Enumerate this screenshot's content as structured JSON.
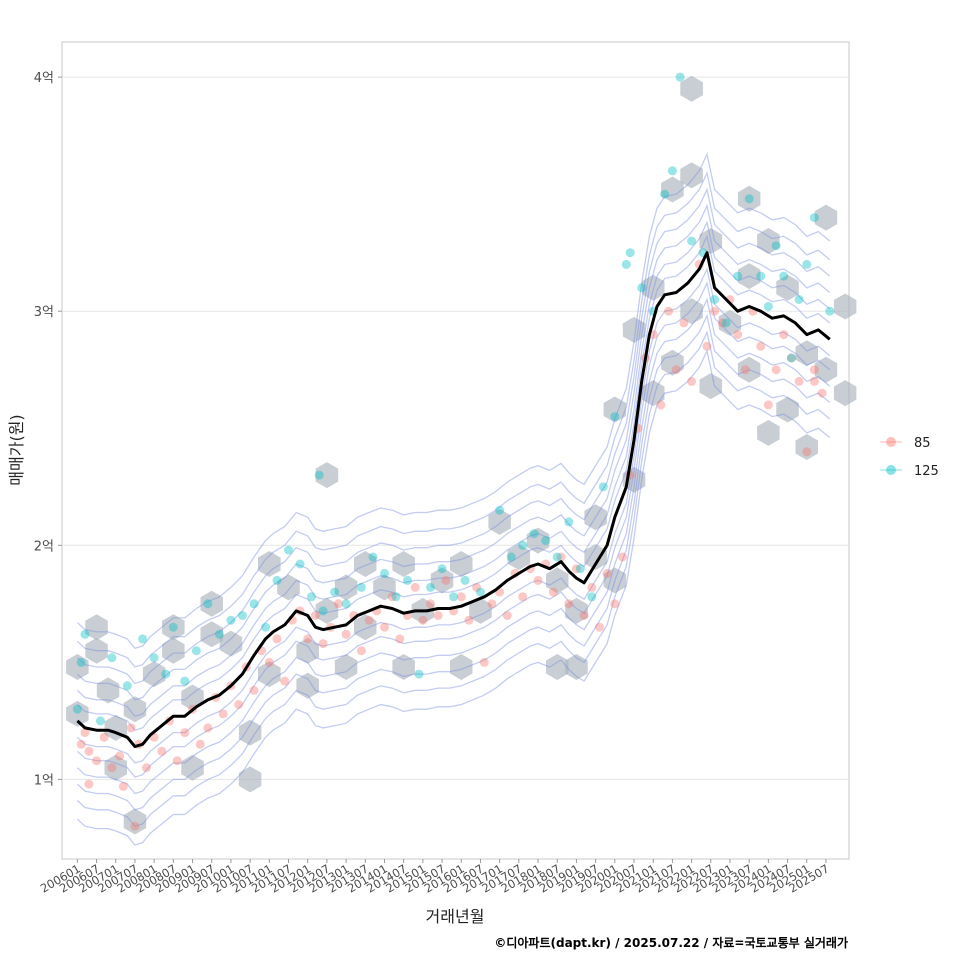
{
  "chart_data": {
    "type": "scatter",
    "title": "",
    "xlabel": "거래년월",
    "ylabel": "매매가(원)",
    "caption": "©디아파트(dapt.kr) / 2025.07.22 / 자료=국토교통부 실거래가",
    "ylim": [
      0.66,
      4.15
    ],
    "y_ticks": [
      {
        "value": 1,
        "label": "1억"
      },
      {
        "value": 2,
        "label": "2억"
      },
      {
        "value": 3,
        "label": "3억"
      },
      {
        "value": 4,
        "label": "4억"
      }
    ],
    "x_ticks": [
      "200601",
      "200607",
      "200701",
      "200707",
      "200801",
      "200807",
      "200901",
      "200907",
      "201001",
      "201007",
      "201101",
      "201107",
      "201201",
      "201207",
      "201301",
      "201307",
      "201401",
      "201407",
      "201501",
      "201507",
      "201601",
      "201607",
      "201701",
      "201707",
      "201801",
      "201807",
      "201901",
      "201907",
      "202001",
      "202007",
      "202101",
      "202107",
      "202201",
      "202207",
      "202301",
      "202307",
      "202401",
      "202407",
      "202501",
      "202507"
    ],
    "x_unit": "year",
    "xlim": [
      2005.6,
      2026.1
    ],
    "grid": true,
    "legend_position": "right",
    "colors": {
      "series_85": "#F8766D",
      "series_125": "#00BFC4",
      "trend": "#000000",
      "hex": "#aab4bd",
      "contour": "#7a8fe0"
    },
    "series": [
      {
        "name": "85",
        "color": "#F8766D",
        "points": [
          [
            2006.1,
            1.15
          ],
          [
            2006.2,
            1.2
          ],
          [
            2006.3,
            1.12
          ],
          [
            2006.5,
            1.08
          ],
          [
            2006.7,
            1.18
          ],
          [
            2006.9,
            1.05
          ],
          [
            2007.1,
            1.1
          ],
          [
            2007.2,
            0.97
          ],
          [
            2007.4,
            1.22
          ],
          [
            2007.6,
            1.15
          ],
          [
            2007.8,
            1.05
          ],
          [
            2008.0,
            1.18
          ],
          [
            2008.2,
            1.12
          ],
          [
            2008.4,
            1.25
          ],
          [
            2008.6,
            1.08
          ],
          [
            2008.8,
            1.2
          ],
          [
            2009.0,
            1.3
          ],
          [
            2009.2,
            1.15
          ],
          [
            2009.4,
            1.22
          ],
          [
            2009.6,
            1.35
          ],
          [
            2009.8,
            1.28
          ],
          [
            2010.0,
            1.4
          ],
          [
            2010.2,
            1.32
          ],
          [
            2010.4,
            1.48
          ],
          [
            2010.6,
            1.38
          ],
          [
            2010.8,
            1.55
          ],
          [
            2011.0,
            1.5
          ],
          [
            2011.2,
            1.6
          ],
          [
            2011.4,
            1.42
          ],
          [
            2011.6,
            1.68
          ],
          [
            2011.8,
            1.72
          ],
          [
            2012.0,
            1.6
          ],
          [
            2012.2,
            1.7
          ],
          [
            2012.4,
            1.58
          ],
          [
            2012.6,
            1.65
          ],
          [
            2012.8,
            1.75
          ],
          [
            2013.0,
            1.62
          ],
          [
            2013.2,
            1.7
          ],
          [
            2013.4,
            1.55
          ],
          [
            2013.6,
            1.68
          ],
          [
            2013.8,
            1.72
          ],
          [
            2014.0,
            1.65
          ],
          [
            2014.2,
            1.78
          ],
          [
            2014.4,
            1.6
          ],
          [
            2014.6,
            1.7
          ],
          [
            2014.8,
            1.82
          ],
          [
            2015.0,
            1.68
          ],
          [
            2015.2,
            1.75
          ],
          [
            2015.4,
            1.7
          ],
          [
            2015.6,
            1.85
          ],
          [
            2015.8,
            1.72
          ],
          [
            2016.0,
            1.78
          ],
          [
            2016.2,
            1.68
          ],
          [
            2016.4,
            1.82
          ],
          [
            2016.6,
            1.5
          ],
          [
            2016.8,
            1.75
          ],
          [
            2017.0,
            1.8
          ],
          [
            2017.2,
            1.7
          ],
          [
            2017.4,
            1.88
          ],
          [
            2017.6,
            1.78
          ],
          [
            2017.8,
            1.9
          ],
          [
            2018.0,
            1.85
          ],
          [
            2018.2,
            1.92
          ],
          [
            2018.4,
            1.8
          ],
          [
            2018.6,
            1.95
          ],
          [
            2018.8,
            1.75
          ],
          [
            2019.0,
            1.9
          ],
          [
            2019.2,
            1.7
          ],
          [
            2019.4,
            1.82
          ],
          [
            2019.6,
            1.65
          ],
          [
            2019.8,
            1.88
          ],
          [
            2020.0,
            1.75
          ],
          [
            2020.2,
            1.95
          ],
          [
            2020.4,
            2.3
          ],
          [
            2020.6,
            2.5
          ],
          [
            2020.8,
            2.8
          ],
          [
            2021.0,
            2.9
          ],
          [
            2021.2,
            2.6
          ],
          [
            2021.4,
            3.0
          ],
          [
            2021.6,
            2.75
          ],
          [
            2021.8,
            2.95
          ],
          [
            2022.0,
            2.7
          ],
          [
            2022.2,
            3.2
          ],
          [
            2022.4,
            2.85
          ],
          [
            2022.6,
            3.0
          ],
          [
            2022.8,
            2.95
          ],
          [
            2023.0,
            3.05
          ],
          [
            2023.2,
            2.9
          ],
          [
            2023.4,
            2.75
          ],
          [
            2023.6,
            3.0
          ],
          [
            2023.8,
            2.85
          ],
          [
            2024.0,
            2.6
          ],
          [
            2024.2,
            2.75
          ],
          [
            2024.4,
            2.9
          ],
          [
            2024.6,
            2.8
          ],
          [
            2024.8,
            2.7
          ],
          [
            2025.0,
            2.4
          ],
          [
            2025.2,
            2.75
          ],
          [
            2025.4,
            2.65
          ],
          [
            2025.2,
            2.7
          ],
          [
            2006.3,
            0.98
          ],
          [
            2007.5,
            0.8
          ]
        ]
      },
      {
        "name": "125",
        "color": "#00BFC4",
        "points": [
          [
            2006.0,
            1.3
          ],
          [
            2006.1,
            1.5
          ],
          [
            2006.2,
            1.62
          ],
          [
            2006.6,
            1.25
          ],
          [
            2006.9,
            1.52
          ],
          [
            2007.3,
            1.4
          ],
          [
            2007.7,
            1.6
          ],
          [
            2008.0,
            1.52
          ],
          [
            2008.3,
            1.45
          ],
          [
            2008.5,
            1.65
          ],
          [
            2008.8,
            1.42
          ],
          [
            2009.1,
            1.55
          ],
          [
            2009.4,
            1.75
          ],
          [
            2009.7,
            1.62
          ],
          [
            2010.0,
            1.68
          ],
          [
            2010.3,
            1.7
          ],
          [
            2010.6,
            1.75
          ],
          [
            2010.9,
            1.65
          ],
          [
            2011.2,
            1.85
          ],
          [
            2011.5,
            1.98
          ],
          [
            2011.8,
            1.92
          ],
          [
            2012.1,
            1.78
          ],
          [
            2012.4,
            1.72
          ],
          [
            2012.7,
            1.8
          ],
          [
            2013.0,
            1.75
          ],
          [
            2013.4,
            1.82
          ],
          [
            2013.7,
            1.95
          ],
          [
            2014.0,
            1.88
          ],
          [
            2014.3,
            1.78
          ],
          [
            2014.6,
            1.85
          ],
          [
            2014.9,
            1.45
          ],
          [
            2015.2,
            1.82
          ],
          [
            2015.5,
            1.9
          ],
          [
            2015.8,
            1.78
          ],
          [
            2016.1,
            1.85
          ],
          [
            2016.5,
            1.8
          ],
          [
            2017.0,
            2.15
          ],
          [
            2017.3,
            1.95
          ],
          [
            2017.6,
            2.0
          ],
          [
            2017.9,
            2.05
          ],
          [
            2018.2,
            2.02
          ],
          [
            2018.5,
            1.95
          ],
          [
            2018.8,
            2.1
          ],
          [
            2019.1,
            1.9
          ],
          [
            2019.4,
            1.78
          ],
          [
            2019.7,
            2.25
          ],
          [
            2020.0,
            2.55
          ],
          [
            2020.3,
            3.2
          ],
          [
            2020.4,
            3.25
          ],
          [
            2020.7,
            3.1
          ],
          [
            2021.0,
            3.0
          ],
          [
            2021.3,
            3.5
          ],
          [
            2021.5,
            3.6
          ],
          [
            2021.7,
            4.0
          ],
          [
            2022.0,
            3.3
          ],
          [
            2022.3,
            3.25
          ],
          [
            2022.6,
            3.05
          ],
          [
            2022.9,
            2.95
          ],
          [
            2023.2,
            3.15
          ],
          [
            2023.5,
            3.48
          ],
          [
            2023.8,
            3.15
          ],
          [
            2024.0,
            3.02
          ],
          [
            2024.2,
            3.28
          ],
          [
            2024.4,
            3.15
          ],
          [
            2024.6,
            2.8
          ],
          [
            2024.8,
            3.05
          ],
          [
            2025.0,
            3.2
          ],
          [
            2025.2,
            3.4
          ],
          [
            2025.6,
            3.0
          ],
          [
            2012.3,
            2.3
          ]
        ]
      }
    ],
    "trend_line": [
      [
        2006.0,
        1.25
      ],
      [
        2006.2,
        1.22
      ],
      [
        2006.5,
        1.21
      ],
      [
        2006.8,
        1.21
      ],
      [
        2007.0,
        1.2
      ],
      [
        2007.3,
        1.18
      ],
      [
        2007.5,
        1.14
      ],
      [
        2007.7,
        1.15
      ],
      [
        2007.9,
        1.19
      ],
      [
        2008.2,
        1.23
      ],
      [
        2008.5,
        1.27
      ],
      [
        2008.8,
        1.27
      ],
      [
        2009.1,
        1.31
      ],
      [
        2009.4,
        1.34
      ],
      [
        2009.7,
        1.36
      ],
      [
        2010.0,
        1.4
      ],
      [
        2010.3,
        1.45
      ],
      [
        2010.6,
        1.53
      ],
      [
        2010.9,
        1.6
      ],
      [
        2011.1,
        1.63
      ],
      [
        2011.4,
        1.66
      ],
      [
        2011.7,
        1.72
      ],
      [
        2012.0,
        1.7
      ],
      [
        2012.2,
        1.65
      ],
      [
        2012.4,
        1.64
      ],
      [
        2012.7,
        1.65
      ],
      [
        2013.0,
        1.66
      ],
      [
        2013.3,
        1.7
      ],
      [
        2013.6,
        1.72
      ],
      [
        2013.9,
        1.74
      ],
      [
        2014.2,
        1.73
      ],
      [
        2014.5,
        1.71
      ],
      [
        2014.8,
        1.72
      ],
      [
        2015.1,
        1.72
      ],
      [
        2015.4,
        1.73
      ],
      [
        2015.7,
        1.73
      ],
      [
        2016.0,
        1.74
      ],
      [
        2016.3,
        1.76
      ],
      [
        2016.6,
        1.78
      ],
      [
        2016.9,
        1.81
      ],
      [
        2017.2,
        1.85
      ],
      [
        2017.5,
        1.88
      ],
      [
        2017.8,
        1.91
      ],
      [
        2018.0,
        1.92
      ],
      [
        2018.3,
        1.9
      ],
      [
        2018.6,
        1.93
      ],
      [
        2018.8,
        1.89
      ],
      [
        2019.0,
        1.86
      ],
      [
        2019.2,
        1.84
      ],
      [
        2019.5,
        1.92
      ],
      [
        2019.8,
        2.0
      ],
      [
        2020.0,
        2.12
      ],
      [
        2020.3,
        2.25
      ],
      [
        2020.5,
        2.45
      ],
      [
        2020.7,
        2.7
      ],
      [
        2020.9,
        2.9
      ],
      [
        2021.1,
        3.02
      ],
      [
        2021.3,
        3.07
      ],
      [
        2021.6,
        3.08
      ],
      [
        2021.9,
        3.12
      ],
      [
        2022.2,
        3.18
      ],
      [
        2022.4,
        3.25
      ],
      [
        2022.6,
        3.1
      ],
      [
        2022.9,
        3.05
      ],
      [
        2023.2,
        3.0
      ],
      [
        2023.5,
        3.02
      ],
      [
        2023.8,
        3.0
      ],
      [
        2024.1,
        2.97
      ],
      [
        2024.4,
        2.98
      ],
      [
        2024.7,
        2.95
      ],
      [
        2025.0,
        2.9
      ],
      [
        2025.3,
        2.92
      ],
      [
        2025.6,
        2.88
      ]
    ],
    "hex_density_centers": [
      [
        2006.0,
        1.48
      ],
      [
        2006.0,
        1.28
      ],
      [
        2006.5,
        1.65
      ],
      [
        2006.5,
        1.55
      ],
      [
        2006.8,
        1.38
      ],
      [
        2007.0,
        1.22
      ],
      [
        2007.0,
        1.05
      ],
      [
        2007.5,
        0.82
      ],
      [
        2007.5,
        1.3
      ],
      [
        2008.0,
        1.45
      ],
      [
        2008.5,
        1.65
      ],
      [
        2008.5,
        1.55
      ],
      [
        2009.0,
        1.35
      ],
      [
        2009.0,
        1.05
      ],
      [
        2009.5,
        1.75
      ],
      [
        2009.5,
        1.62
      ],
      [
        2010.0,
        1.58
      ],
      [
        2010.5,
        1.2
      ],
      [
        2010.5,
        1.0
      ],
      [
        2011.0,
        1.92
      ],
      [
        2011.0,
        1.45
      ],
      [
        2011.5,
        1.82
      ],
      [
        2012.0,
        1.55
      ],
      [
        2012.0,
        1.4
      ],
      [
        2012.5,
        1.72
      ],
      [
        2013.0,
        1.82
      ],
      [
        2013.0,
        1.48
      ],
      [
        2013.5,
        1.92
      ],
      [
        2013.5,
        1.65
      ],
      [
        2014.0,
        1.82
      ],
      [
        2014.5,
        1.92
      ],
      [
        2014.5,
        1.48
      ],
      [
        2015.0,
        1.72
      ],
      [
        2015.5,
        1.85
      ],
      [
        2016.0,
        1.92
      ],
      [
        2016.0,
        1.48
      ],
      [
        2016.5,
        1.72
      ],
      [
        2017.0,
        2.1
      ],
      [
        2017.5,
        1.95
      ],
      [
        2018.0,
        2.02
      ],
      [
        2018.5,
        1.85
      ],
      [
        2019.0,
        1.72
      ],
      [
        2019.0,
        1.48
      ],
      [
        2019.5,
        2.12
      ],
      [
        2019.5,
        1.95
      ],
      [
        2020.0,
        2.58
      ],
      [
        2020.0,
        1.85
      ],
      [
        2020.5,
        2.92
      ],
      [
        2020.5,
        2.28
      ],
      [
        2021.0,
        3.1
      ],
      [
        2021.0,
        2.65
      ],
      [
        2021.5,
        3.52
      ],
      [
        2021.5,
        2.78
      ],
      [
        2022.0,
        3.95
      ],
      [
        2022.0,
        3.58
      ],
      [
        2022.0,
        3.0
      ],
      [
        2022.5,
        3.3
      ],
      [
        2022.5,
        2.68
      ],
      [
        2023.0,
        2.95
      ],
      [
        2023.5,
        3.48
      ],
      [
        2023.5,
        3.15
      ],
      [
        2023.5,
        2.75
      ],
      [
        2024.0,
        2.48
      ],
      [
        2024.0,
        3.3
      ],
      [
        2024.5,
        3.1
      ],
      [
        2024.5,
        2.58
      ],
      [
        2025.0,
        2.82
      ],
      [
        2025.0,
        2.42
      ],
      [
        2025.5,
        3.4
      ],
      [
        2025.5,
        2.75
      ],
      [
        2026.0,
        3.02
      ],
      [
        2026.0,
        2.65
      ],
      [
        2012.5,
        2.3
      ],
      [
        2018.5,
        1.48
      ]
    ]
  },
  "legend": {
    "items": [
      {
        "label": "85",
        "color": "#F8766D"
      },
      {
        "label": "125",
        "color": "#00BFC4"
      }
    ]
  }
}
